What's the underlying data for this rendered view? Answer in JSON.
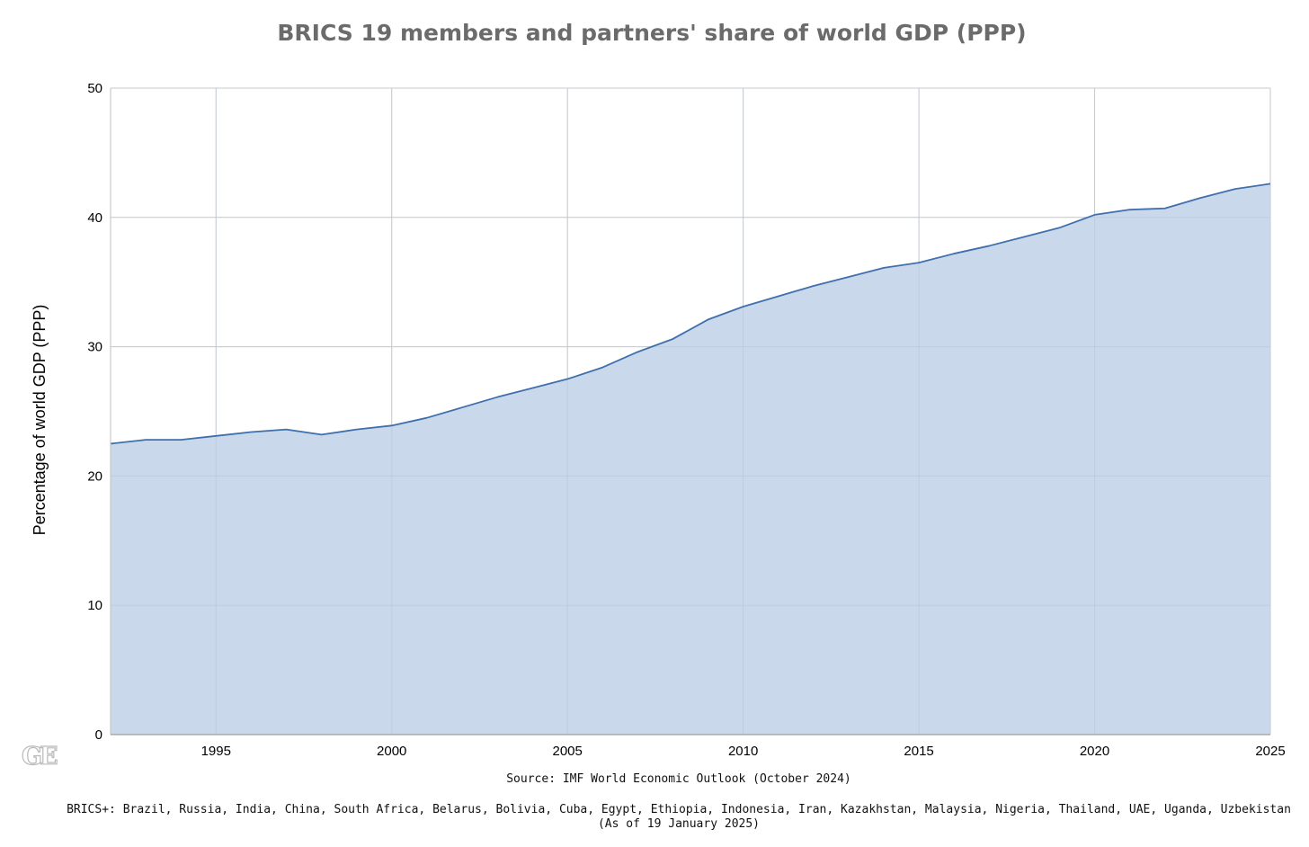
{
  "chart_data": {
    "type": "area",
    "title": "BRICS 19 members and partners' share of world GDP (PPP)",
    "xlabel": "",
    "ylabel": "Percentage of world GDP (PPP)",
    "xlim": [
      1992,
      2025
    ],
    "ylim": [
      0,
      50
    ],
    "yticks": [
      0,
      10,
      20,
      30,
      40,
      50
    ],
    "xticks": [
      1995,
      2000,
      2005,
      2010,
      2015,
      2020,
      2025
    ],
    "grid": true,
    "legend": "none",
    "series": [
      {
        "color": "#3f6fad",
        "fill": "#c9d8ea",
        "x": [
          1992,
          1993,
          1994,
          1995,
          1996,
          1997,
          1998,
          1999,
          2000,
          2001,
          2002,
          2003,
          2004,
          2005,
          2006,
          2007,
          2008,
          2009,
          2010,
          2011,
          2012,
          2013,
          2014,
          2015,
          2016,
          2017,
          2018,
          2019,
          2020,
          2021,
          2022,
          2023,
          2024,
          2025
        ],
        "values": [
          22.5,
          22.8,
          22.8,
          23.1,
          23.4,
          23.6,
          23.2,
          23.6,
          23.9,
          24.5,
          25.3,
          26.1,
          26.8,
          27.5,
          28.4,
          29.6,
          30.6,
          32.1,
          33.1,
          33.9,
          34.7,
          35.4,
          36.1,
          36.5,
          37.2,
          37.8,
          38.5,
          39.2,
          40.2,
          40.6,
          40.7,
          41.5,
          42.2,
          42.6
        ]
      }
    ]
  },
  "notes": {
    "source": "Source: IMF World Economic Outlook (October 2024)",
    "members": "BRICS+: Brazil, Russia, India, China, South Africa, Belarus, Bolivia, Cuba, Egypt, Ethiopia, Indonesia, Iran, Kazakhstan, Malaysia, Nigeria, Thailand, UAE, Uganda, Uzbekistan",
    "as_of": "(As of 19 January 2025)"
  },
  "logo": {
    "text": "GE"
  }
}
